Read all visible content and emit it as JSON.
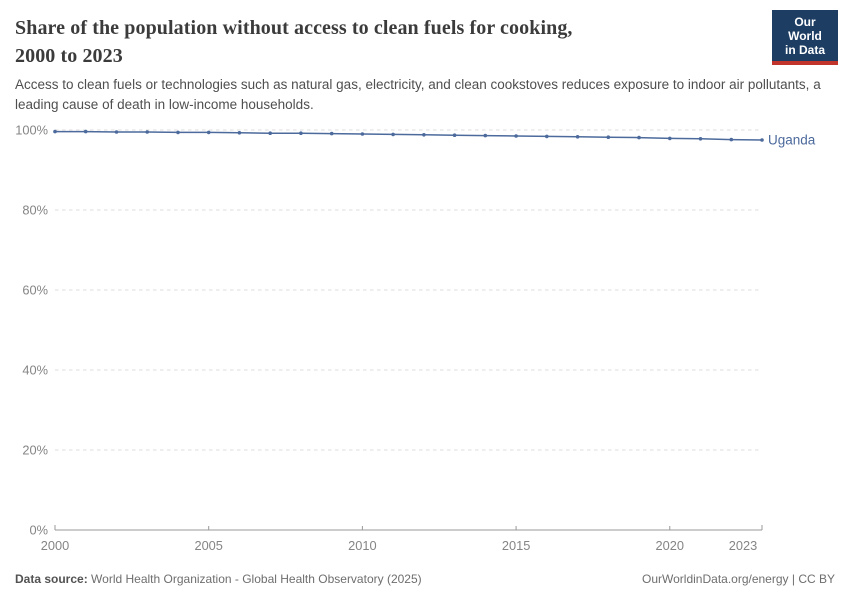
{
  "header": {
    "title_line1": "Share of the population without access to clean fuels for cooking,",
    "title_line2": "2000 to 2023",
    "subtitle": "Access to clean fuels or technologies such as natural gas, electricity, and clean cookstoves reduces exposure to indoor air pollutants, a leading cause of death in low-income households.",
    "logo": {
      "line1": "Our World",
      "line2": "in Data"
    }
  },
  "chart_data": {
    "type": "line",
    "title": "Share of the population without access to clean fuels for cooking, 2000 to 2023",
    "xlabel": "",
    "ylabel": "",
    "xlim": [
      2000,
      2023
    ],
    "ylim": [
      0,
      100
    ],
    "x_ticks": [
      2000,
      2005,
      2010,
      2015,
      2020,
      2023
    ],
    "y_ticks": [
      0,
      20,
      40,
      60,
      80,
      100
    ],
    "y_tick_suffix": "%",
    "grid": "horizontal-dashed",
    "legend_position": "end-of-line-label",
    "series": [
      {
        "name": "Uganda",
        "color": "#4c6a9c",
        "x": [
          2000,
          2001,
          2002,
          2003,
          2004,
          2005,
          2006,
          2007,
          2008,
          2009,
          2010,
          2011,
          2012,
          2013,
          2014,
          2015,
          2016,
          2017,
          2018,
          2019,
          2020,
          2021,
          2022,
          2023
        ],
        "values": [
          99.6,
          99.6,
          99.5,
          99.5,
          99.4,
          99.4,
          99.3,
          99.2,
          99.2,
          99.1,
          99.0,
          98.9,
          98.8,
          98.7,
          98.6,
          98.5,
          98.4,
          98.3,
          98.2,
          98.1,
          97.9,
          97.8,
          97.6,
          97.5
        ]
      }
    ]
  },
  "footer": {
    "data_source_label": "Data source:",
    "data_source": " World Health Organization - Global Health Observatory (2025)",
    "credit": "OurWorldinData.org/energy | CC BY"
  },
  "colors": {
    "line": "#4c6a9c",
    "grid": "#dcdcdc",
    "axis": "#999999",
    "tick_text": "#858585",
    "logo_bg": "#1d3d63",
    "logo_red": "#c0342b"
  }
}
